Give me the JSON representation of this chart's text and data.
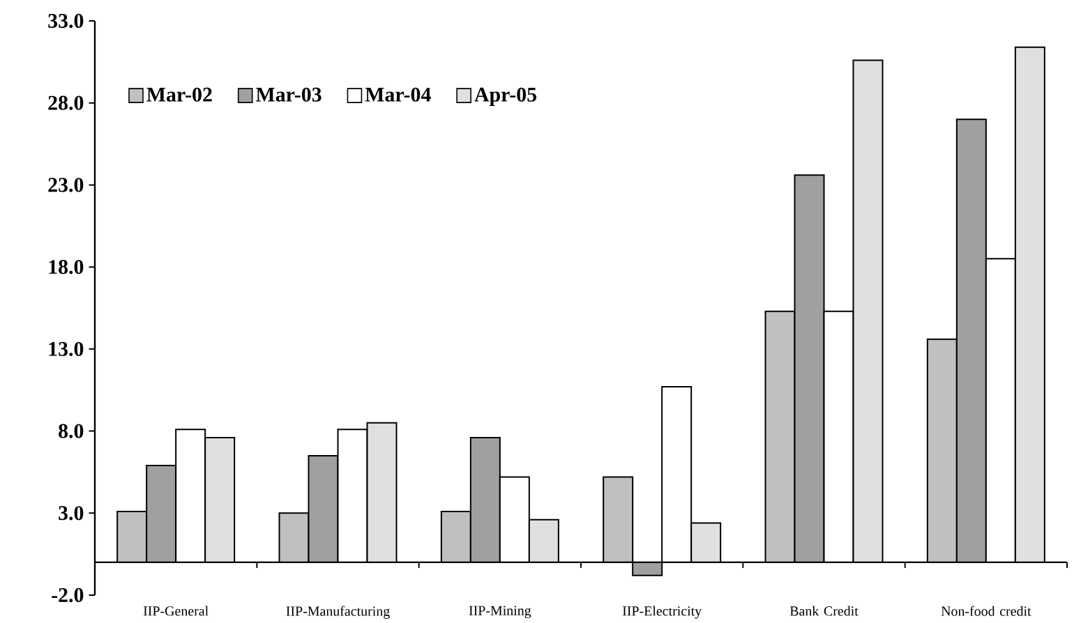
{
  "chart_data": {
    "type": "bar",
    "categories": [
      "IIP-General",
      "IIP-Manufacturing",
      "IIP-Mining",
      "IIP-Electricity",
      "Bank Credit",
      "Non-food credit"
    ],
    "series": [
      {
        "name": "Mar-02",
        "color": "#c0c0c0",
        "values": [
          3.1,
          3.0,
          3.1,
          5.2,
          15.3,
          13.6
        ]
      },
      {
        "name": "Mar-03",
        "color": "#a0a0a0",
        "values": [
          5.9,
          6.5,
          7.6,
          -0.8,
          23.6,
          27.0
        ]
      },
      {
        "name": "Mar-04",
        "color": "#ffffff",
        "values": [
          8.1,
          8.1,
          5.2,
          10.7,
          15.3,
          18.5
        ]
      },
      {
        "name": "Apr-05",
        "color": "#e0e0e0",
        "values": [
          7.6,
          8.5,
          2.6,
          2.4,
          30.6,
          31.4
        ]
      }
    ],
    "ylim": [
      -2,
      33
    ],
    "yticks": [
      {
        "value": -2,
        "label": "-2.0"
      },
      {
        "value": 3,
        "label": "3.0"
      },
      {
        "value": 8,
        "label": "8.0"
      },
      {
        "value": 13,
        "label": "13.0"
      },
      {
        "value": 18,
        "label": "18.0"
      },
      {
        "value": 23,
        "label": "23.0"
      },
      {
        "value": 28,
        "label": "28.0"
      },
      {
        "value": 33,
        "label": "33.0"
      }
    ],
    "legend": "top left",
    "grid": false
  }
}
